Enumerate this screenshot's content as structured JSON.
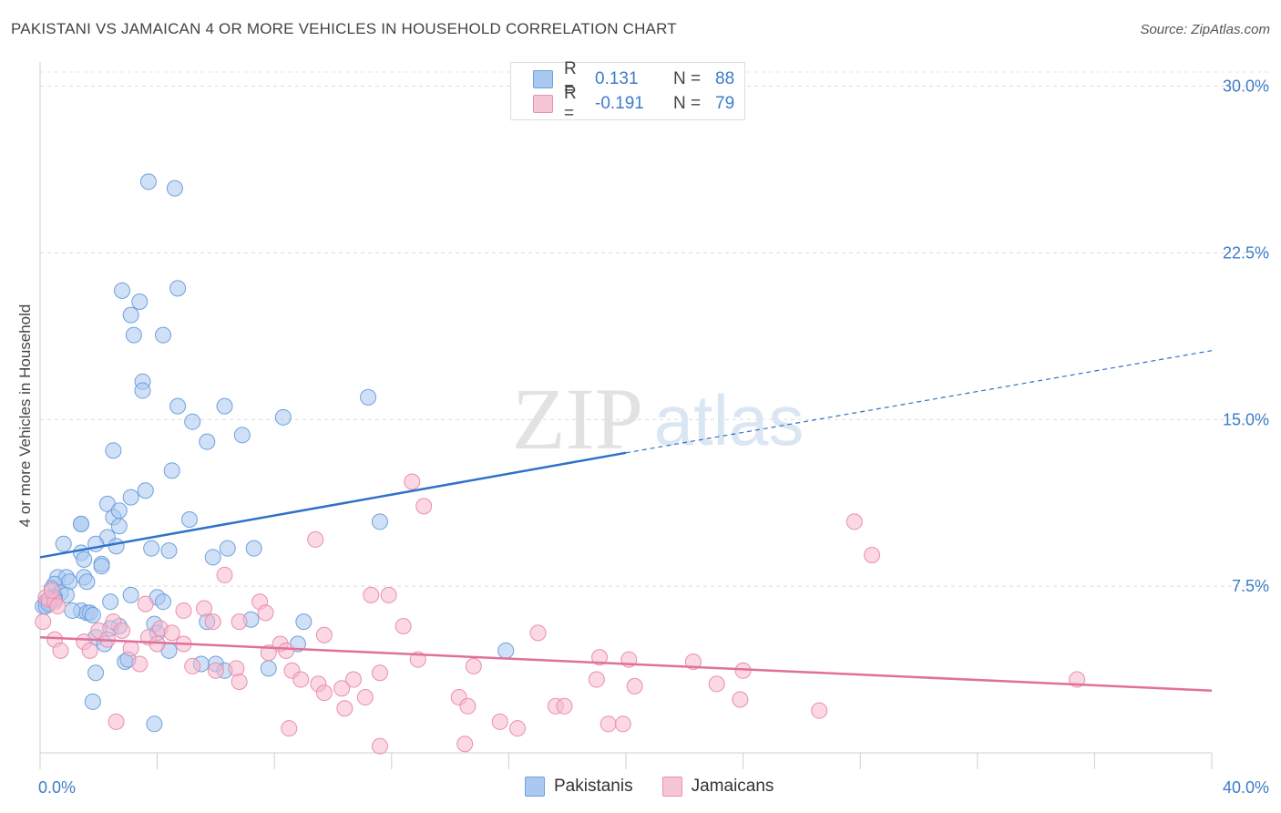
{
  "title": "PAKISTANI VS JAMAICAN 4 OR MORE VEHICLES IN HOUSEHOLD CORRELATION CHART",
  "source": "Source: ZipAtlas.com",
  "watermark": {
    "zip": "ZIP",
    "atlas": "atlas"
  },
  "legend": {
    "rows": [
      {
        "r_label": "R =",
        "r_value": "0.131",
        "n_label": "N =",
        "n_value": "88",
        "color": "#aac9f0"
      },
      {
        "r_label": "R =",
        "r_value": "-0.191",
        "n_label": "N =",
        "n_value": "79",
        "color": "#f7b8cd"
      }
    ]
  },
  "bottom_legend": [
    {
      "label": "Pakistanis",
      "color": "#aac9f0"
    },
    {
      "label": "Jamaicans",
      "color": "#f7b8cd"
    }
  ],
  "chart_data": {
    "type": "scatter",
    "title": "PAKISTANI VS JAMAICAN 4 OR MORE VEHICLES IN HOUSEHOLD CORRELATION CHART",
    "xlabel": "",
    "ylabel": "4 or more Vehicles in Household",
    "xlim": [
      0,
      40
    ],
    "ylim": [
      0,
      30.8
    ],
    "x_tick_labels": [
      "0.0%",
      "40.0%"
    ],
    "y_ticks": [
      7.5,
      15.0,
      22.5,
      30.0
    ],
    "y_tick_labels": [
      "7.5%",
      "15.0%",
      "22.5%",
      "30.0%"
    ],
    "grid": true,
    "legend_position": "top-center",
    "series": [
      {
        "name": "Pakistanis",
        "color": "#aac9f0",
        "stroke": "#6fa0dc",
        "trend": {
          "x": [
            0,
            20
          ],
          "y": [
            8.8,
            13.5
          ],
          "dashed_to": [
            40,
            18.1
          ],
          "color": "#2f72c9"
        },
        "points": [
          [
            3.7,
            25.7
          ],
          [
            4.6,
            25.4
          ],
          [
            2.8,
            20.8
          ],
          [
            4.7,
            20.9
          ],
          [
            3.4,
            20.3
          ],
          [
            3.1,
            19.7
          ],
          [
            3.2,
            18.8
          ],
          [
            4.2,
            18.8
          ],
          [
            3.5,
            16.7
          ],
          [
            3.5,
            16.3
          ],
          [
            11.2,
            16.0
          ],
          [
            4.7,
            15.6
          ],
          [
            6.3,
            15.6
          ],
          [
            8.3,
            15.1
          ],
          [
            5.2,
            14.9
          ],
          [
            5.7,
            14.0
          ],
          [
            6.9,
            14.3
          ],
          [
            2.5,
            13.6
          ],
          [
            4.5,
            12.7
          ],
          [
            3.6,
            11.8
          ],
          [
            3.1,
            11.5
          ],
          [
            2.3,
            11.2
          ],
          [
            2.5,
            10.6
          ],
          [
            2.7,
            10.9
          ],
          [
            2.7,
            10.2
          ],
          [
            5.1,
            10.5
          ],
          [
            1.4,
            10.3
          ],
          [
            1.4,
            10.3
          ],
          [
            11.6,
            10.4
          ],
          [
            2.3,
            9.7
          ],
          [
            0.8,
            9.4
          ],
          [
            1.9,
            9.4
          ],
          [
            2.6,
            9.3
          ],
          [
            3.8,
            9.2
          ],
          [
            4.4,
            9.1
          ],
          [
            6.4,
            9.2
          ],
          [
            7.3,
            9.2
          ],
          [
            1.4,
            9.0
          ],
          [
            5.9,
            8.8
          ],
          [
            1.5,
            8.7
          ],
          [
            2.1,
            8.5
          ],
          [
            2.1,
            8.4
          ],
          [
            0.6,
            7.9
          ],
          [
            0.9,
            7.9
          ],
          [
            1.5,
            7.9
          ],
          [
            0.5,
            7.6
          ],
          [
            1.0,
            7.7
          ],
          [
            1.6,
            7.7
          ],
          [
            0.4,
            7.4
          ],
          [
            0.7,
            7.2
          ],
          [
            0.9,
            7.1
          ],
          [
            0.5,
            7.0
          ],
          [
            0.3,
            6.9
          ],
          [
            0.2,
            6.8
          ],
          [
            0.5,
            6.9
          ],
          [
            0.1,
            6.6
          ],
          [
            1.4,
            6.4
          ],
          [
            1.6,
            6.3
          ],
          [
            1.7,
            6.3
          ],
          [
            1.8,
            6.2
          ],
          [
            2.4,
            6.8
          ],
          [
            3.1,
            7.1
          ],
          [
            4.0,
            7.0
          ],
          [
            4.2,
            6.8
          ],
          [
            0.2,
            6.6
          ],
          [
            2.7,
            5.7
          ],
          [
            1.9,
            5.2
          ],
          [
            2.4,
            5.6
          ],
          [
            3.9,
            5.8
          ],
          [
            5.7,
            5.9
          ],
          [
            7.2,
            6.0
          ],
          [
            4.0,
            5.4
          ],
          [
            4.4,
            4.6
          ],
          [
            6.0,
            4.0
          ],
          [
            2.9,
            4.1
          ],
          [
            6.3,
            3.7
          ],
          [
            7.8,
            3.8
          ],
          [
            9.0,
            5.9
          ],
          [
            8.8,
            4.9
          ],
          [
            15.9,
            4.6
          ],
          [
            1.9,
            3.6
          ],
          [
            1.8,
            2.3
          ],
          [
            3.9,
            1.3
          ],
          [
            5.5,
            4.0
          ],
          [
            3.0,
            4.2
          ],
          [
            0.3,
            6.7
          ],
          [
            1.1,
            6.4
          ],
          [
            2.2,
            4.9
          ]
        ]
      },
      {
        "name": "Jamaicans",
        "color": "#f7b8cd",
        "stroke": "#e98fad",
        "trend": {
          "x": [
            0,
            40
          ],
          "y": [
            5.2,
            2.8
          ],
          "color": "#e0709a"
        },
        "points": [
          [
            12.7,
            12.2
          ],
          [
            13.1,
            11.1
          ],
          [
            27.8,
            10.4
          ],
          [
            28.4,
            8.9
          ],
          [
            9.4,
            9.6
          ],
          [
            6.3,
            8.0
          ],
          [
            11.3,
            7.1
          ],
          [
            11.9,
            7.1
          ],
          [
            0.2,
            7.0
          ],
          [
            0.3,
            6.9
          ],
          [
            0.5,
            6.8
          ],
          [
            0.6,
            6.6
          ],
          [
            7.5,
            6.8
          ],
          [
            5.6,
            6.5
          ],
          [
            4.9,
            6.4
          ],
          [
            7.7,
            6.3
          ],
          [
            3.6,
            6.7
          ],
          [
            0.1,
            5.9
          ],
          [
            2.5,
            5.9
          ],
          [
            5.9,
            5.9
          ],
          [
            6.8,
            5.9
          ],
          [
            12.4,
            5.7
          ],
          [
            2.8,
            5.5
          ],
          [
            2.0,
            5.5
          ],
          [
            4.1,
            5.6
          ],
          [
            4.5,
            5.4
          ],
          [
            17.0,
            5.4
          ],
          [
            9.7,
            5.3
          ],
          [
            0.5,
            5.1
          ],
          [
            1.5,
            5.0
          ],
          [
            2.3,
            5.1
          ],
          [
            3.7,
            5.2
          ],
          [
            4.0,
            4.9
          ],
          [
            4.9,
            4.9
          ],
          [
            8.2,
            4.9
          ],
          [
            3.1,
            4.7
          ],
          [
            1.7,
            4.6
          ],
          [
            0.7,
            4.6
          ],
          [
            7.8,
            4.5
          ],
          [
            8.4,
            4.6
          ],
          [
            12.9,
            4.2
          ],
          [
            19.1,
            4.3
          ],
          [
            20.1,
            4.2
          ],
          [
            22.3,
            4.1
          ],
          [
            3.4,
            4.0
          ],
          [
            5.2,
            3.9
          ],
          [
            6.7,
            3.8
          ],
          [
            8.6,
            3.7
          ],
          [
            14.8,
            3.9
          ],
          [
            24.0,
            3.7
          ],
          [
            6.0,
            3.7
          ],
          [
            8.9,
            3.3
          ],
          [
            11.6,
            3.6
          ],
          [
            10.7,
            3.3
          ],
          [
            9.5,
            3.1
          ],
          [
            19.0,
            3.3
          ],
          [
            23.1,
            3.1
          ],
          [
            35.4,
            3.3
          ],
          [
            6.8,
            3.2
          ],
          [
            10.3,
            2.9
          ],
          [
            20.3,
            3.0
          ],
          [
            9.7,
            2.7
          ],
          [
            11.1,
            2.5
          ],
          [
            14.3,
            2.5
          ],
          [
            14.6,
            2.1
          ],
          [
            17.6,
            2.1
          ],
          [
            17.9,
            2.1
          ],
          [
            10.4,
            2.0
          ],
          [
            23.9,
            2.4
          ],
          [
            26.6,
            1.9
          ],
          [
            15.7,
            1.4
          ],
          [
            16.3,
            1.1
          ],
          [
            2.6,
            1.4
          ],
          [
            19.4,
            1.3
          ],
          [
            19.9,
            1.3
          ],
          [
            8.5,
            1.1
          ],
          [
            11.6,
            0.3
          ],
          [
            14.5,
            0.4
          ],
          [
            0.4,
            7.3
          ]
        ]
      }
    ]
  }
}
